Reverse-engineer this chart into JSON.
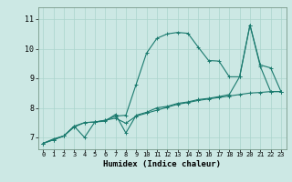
{
  "title": "",
  "xlabel": "Humidex (Indice chaleur)",
  "ylabel": "",
  "bg_color": "#cce8e4",
  "grid_color": "#aad4cc",
  "line_color": "#1a7a6e",
  "xlim": [
    -0.5,
    23.5
  ],
  "ylim": [
    6.6,
    11.4
  ],
  "xticks": [
    0,
    1,
    2,
    3,
    4,
    5,
    6,
    7,
    8,
    9,
    10,
    11,
    12,
    13,
    14,
    15,
    16,
    17,
    18,
    19,
    20,
    21,
    22,
    23
  ],
  "yticks": [
    7,
    8,
    9,
    10,
    11
  ],
  "line1_x": [
    0,
    1,
    2,
    3,
    4,
    5,
    6,
    7,
    8,
    9,
    10,
    11,
    12,
    13,
    14,
    15,
    16,
    17,
    18,
    19,
    20,
    21,
    22,
    23
  ],
  "line1_y": [
    6.8,
    6.95,
    7.05,
    7.35,
    7.5,
    7.52,
    7.58,
    7.72,
    7.75,
    8.8,
    9.85,
    10.35,
    10.5,
    10.55,
    10.52,
    10.05,
    9.6,
    9.58,
    9.05,
    9.05,
    10.8,
    9.45,
    9.35,
    8.55
  ],
  "line2_x": [
    0,
    1,
    2,
    3,
    4,
    5,
    6,
    7,
    8,
    9,
    10,
    11,
    12,
    13,
    14,
    15,
    16,
    17,
    18,
    19,
    20,
    21,
    22,
    23
  ],
  "line2_y": [
    6.8,
    6.92,
    7.05,
    7.38,
    7.5,
    7.52,
    7.58,
    7.65,
    7.48,
    7.72,
    7.82,
    7.92,
    8.02,
    8.12,
    8.18,
    8.25,
    8.3,
    8.35,
    8.4,
    8.45,
    8.5,
    8.52,
    8.55,
    8.55
  ],
  "line3_x": [
    0,
    1,
    2,
    3,
    4,
    5,
    6,
    7,
    8,
    9,
    10,
    11,
    12,
    13,
    14,
    15,
    16,
    17,
    18,
    19,
    20,
    21,
    22,
    23
  ],
  "line3_y": [
    6.8,
    6.92,
    7.05,
    7.38,
    7.0,
    7.52,
    7.55,
    7.78,
    7.15,
    7.75,
    7.85,
    8.0,
    8.05,
    8.15,
    8.2,
    8.28,
    8.32,
    8.38,
    8.45,
    9.05,
    10.8,
    9.4,
    8.55,
    8.55
  ],
  "xlabel_fontsize": 6.5,
  "xtick_fontsize": 5.0,
  "ytick_fontsize": 6.0,
  "linewidth": 0.8,
  "markersize": 2.5
}
